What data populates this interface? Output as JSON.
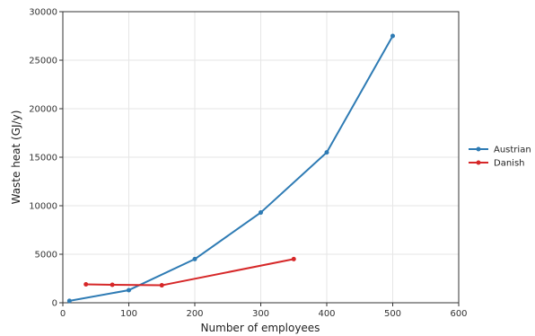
{
  "chart_data": {
    "type": "line",
    "title": "",
    "xlabel": "Number of employees",
    "ylabel": "Waste heat (GJ/y)",
    "xlim": [
      0,
      600
    ],
    "ylim": [
      0,
      30000
    ],
    "xticks": [
      0,
      100,
      200,
      300,
      400,
      500,
      600
    ],
    "yticks": [
      0,
      5000,
      10000,
      15000,
      20000,
      25000,
      30000
    ],
    "grid": true,
    "legend_position": "right",
    "series": [
      {
        "name": "Austrian",
        "color": "#2e7bb4",
        "points": [
          [
            10,
            200
          ],
          [
            100,
            1300
          ],
          [
            200,
            4500
          ],
          [
            300,
            9300
          ],
          [
            400,
            15500
          ],
          [
            500,
            27500
          ]
        ]
      },
      {
        "name": "Danish",
        "color": "#d62728",
        "points": [
          [
            35,
            1900
          ],
          [
            75,
            1850
          ],
          [
            150,
            1800
          ],
          [
            350,
            4500
          ]
        ]
      }
    ]
  }
}
